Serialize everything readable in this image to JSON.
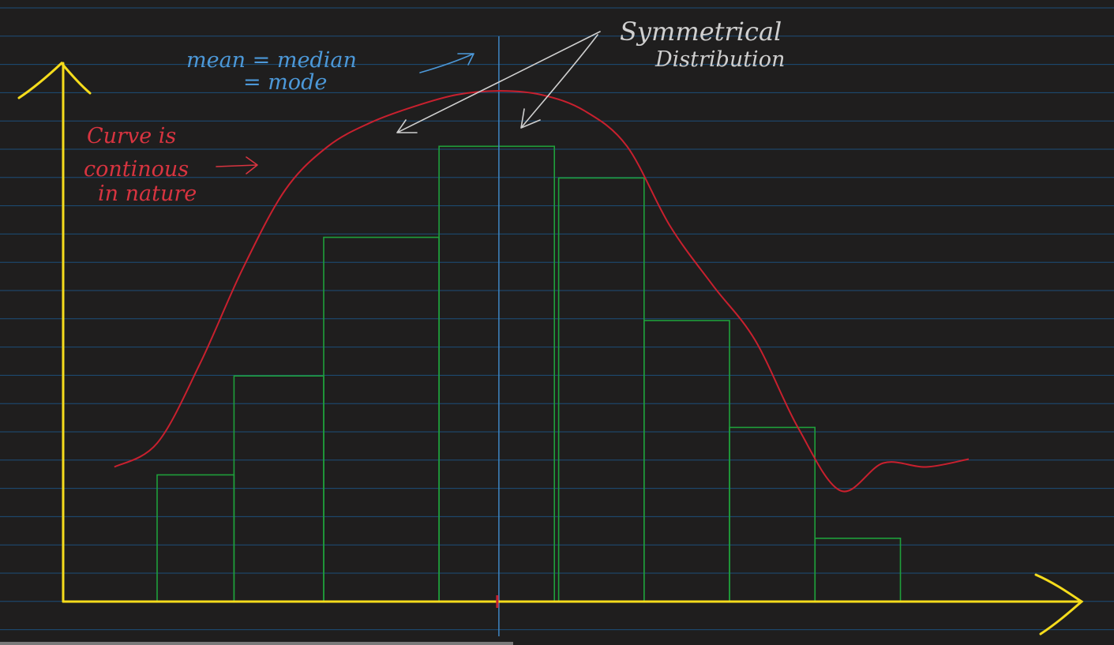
{
  "colors": {
    "background": "#1f1e1e",
    "ruled_line": "#1d4f7a",
    "axis": "#f5dc1c",
    "bar_outline": "#1f9f3b",
    "curve": "#c8202e",
    "center_line": "#3f86c4",
    "mean_note": "#4c98d8",
    "symmetry_note": "#cfcfcf",
    "curve_note": "#d83440"
  },
  "annotations": {
    "mean_line1": "mean = median",
    "mean_line2": "= mode",
    "symmetrical_line1": "Symmetrical",
    "symmetrical_line2": "Distribution",
    "curve_line1": "Curve is",
    "curve_line2": "continous",
    "curve_line3": "in nature"
  },
  "chart_data": {
    "type": "bar",
    "title": "",
    "xlabel": "",
    "ylabel": "",
    "bars": [
      {
        "x0": 1.0,
        "x1": 1.9,
        "value": 1.6
      },
      {
        "x0": 1.9,
        "x1": 2.95,
        "value": 2.85
      },
      {
        "x0": 2.95,
        "x1": 4.3,
        "value": 4.6
      },
      {
        "x0": 4.3,
        "x1": 5.65,
        "value": 5.75
      },
      {
        "x0": 5.7,
        "x1": 6.7,
        "value": 5.35
      },
      {
        "x0": 6.7,
        "x1": 7.7,
        "value": 3.55
      },
      {
        "x0": 7.7,
        "x1": 8.7,
        "value": 2.2
      },
      {
        "x0": 8.7,
        "x1": 9.7,
        "value": 0.8
      }
    ],
    "curve": {
      "x": [
        0.5,
        1.0,
        1.5,
        2.0,
        2.5,
        3.0,
        3.5,
        4.0,
        4.5,
        5.0,
        5.5,
        6.0,
        6.5,
        7.0,
        7.5,
        8.0,
        8.5,
        9.0,
        9.5,
        10.0,
        10.5
      ],
      "y": [
        1.7,
        2.0,
        3.0,
        4.2,
        5.2,
        5.75,
        6.05,
        6.25,
        6.4,
        6.45,
        6.4,
        6.2,
        5.75,
        4.75,
        4.0,
        3.3,
        2.2,
        1.4,
        1.75,
        1.7,
        1.8
      ]
    },
    "center_x": 5.0,
    "xlim": [
      -0.1,
      12.2
    ],
    "ylim": [
      0,
      6.8
    ]
  }
}
